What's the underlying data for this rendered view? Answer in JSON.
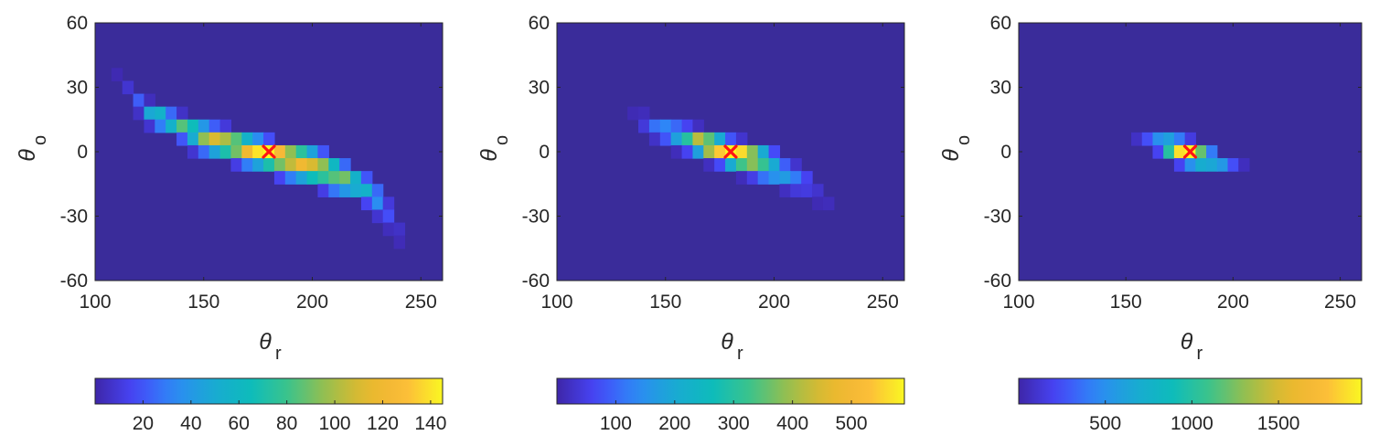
{
  "colors": {
    "background_cell": "#3a2c9a",
    "marker": "#ff1414",
    "axis": "#262626",
    "colormap": [
      "#3e26a8",
      "#4745f8",
      "#2e87f7",
      "#1aa9d3",
      "#0cbcbc",
      "#3bc38b",
      "#9abe4c",
      "#e6b92c",
      "#fcb93a",
      "#faf722"
    ]
  },
  "chart_data": [
    {
      "type": "heatmap",
      "xlabel": "θ",
      "xlabel_sub": "r",
      "ylabel": "θ",
      "ylabel_sub": "o",
      "xlim": [
        100,
        260
      ],
      "ylim": [
        -60,
        60
      ],
      "xticks": [
        100,
        150,
        200,
        250
      ],
      "yticks": [
        -60,
        -30,
        0,
        30,
        60
      ],
      "xtick_labels": [
        "100",
        "150",
        "200",
        "250"
      ],
      "ytick_labels": [
        "-60",
        "-30",
        "0",
        "30",
        "60"
      ],
      "bin_width_x": 5,
      "bin_width_y": 6,
      "colorbar": {
        "min": 0,
        "max": 145,
        "ticks": [
          20,
          40,
          60,
          80,
          100,
          120,
          140
        ],
        "tick_labels": [
          "20",
          "40",
          "60",
          "80",
          "100",
          "120",
          "140"
        ]
      },
      "marker": {
        "type": "x",
        "x": 180,
        "y": 0
      },
      "cells": [
        [
          110,
          36,
          2
        ],
        [
          115,
          30,
          8
        ],
        [
          120,
          24,
          22
        ],
        [
          125,
          24,
          4
        ],
        [
          120,
          18,
          6
        ],
        [
          125,
          18,
          48
        ],
        [
          130,
          18,
          55
        ],
        [
          135,
          18,
          25
        ],
        [
          140,
          18,
          6
        ],
        [
          125,
          12,
          8
        ],
        [
          130,
          12,
          30
        ],
        [
          135,
          12,
          55
        ],
        [
          140,
          12,
          85
        ],
        [
          145,
          12,
          65
        ],
        [
          150,
          12,
          40
        ],
        [
          155,
          12,
          22
        ],
        [
          160,
          12,
          10
        ],
        [
          140,
          6,
          20
        ],
        [
          145,
          6,
          50
        ],
        [
          150,
          6,
          95
        ],
        [
          155,
          6,
          110
        ],
        [
          160,
          6,
          100
        ],
        [
          165,
          6,
          85
        ],
        [
          170,
          6,
          55
        ],
        [
          175,
          6,
          35
        ],
        [
          180,
          6,
          18
        ],
        [
          145,
          0,
          8
        ],
        [
          150,
          0,
          25
        ],
        [
          155,
          0,
          45
        ],
        [
          160,
          0,
          70
        ],
        [
          165,
          0,
          90
        ],
        [
          170,
          0,
          120
        ],
        [
          175,
          0,
          140
        ],
        [
          180,
          0,
          145
        ],
        [
          185,
          0,
          125
        ],
        [
          190,
          0,
          95
        ],
        [
          195,
          0,
          75
        ],
        [
          200,
          0,
          45
        ],
        [
          205,
          0,
          20
        ],
        [
          165,
          -6,
          12
        ],
        [
          170,
          -6,
          30
        ],
        [
          175,
          -6,
          45
        ],
        [
          180,
          -6,
          70
        ],
        [
          185,
          -6,
          90
        ],
        [
          190,
          -6,
          105
        ],
        [
          195,
          -6,
          120
        ],
        [
          200,
          -6,
          110
        ],
        [
          205,
          -6,
          95
        ],
        [
          210,
          -6,
          60
        ],
        [
          215,
          -6,
          25
        ],
        [
          185,
          -12,
          15
        ],
        [
          190,
          -12,
          30
        ],
        [
          195,
          -12,
          45
        ],
        [
          200,
          -12,
          65
        ],
        [
          205,
          -12,
          75
        ],
        [
          210,
          -12,
          85
        ],
        [
          215,
          -12,
          90
        ],
        [
          220,
          -12,
          55
        ],
        [
          225,
          -12,
          20
        ],
        [
          205,
          -18,
          12
        ],
        [
          210,
          -18,
          28
        ],
        [
          215,
          -18,
          40
        ],
        [
          220,
          -18,
          50
        ],
        [
          225,
          -18,
          55
        ],
        [
          230,
          -18,
          25
        ],
        [
          225,
          -24,
          15
        ],
        [
          230,
          -24,
          35
        ],
        [
          235,
          -24,
          10
        ],
        [
          230,
          -30,
          8
        ],
        [
          235,
          -30,
          18
        ],
        [
          235,
          -36,
          4
        ],
        [
          240,
          -36,
          6
        ],
        [
          240,
          -42,
          3
        ]
      ]
    },
    {
      "type": "heatmap",
      "xlabel": "θ",
      "xlabel_sub": "r",
      "ylabel": "θ",
      "ylabel_sub": "o",
      "xlim": [
        100,
        260
      ],
      "ylim": [
        -60,
        60
      ],
      "xticks": [
        100,
        150,
        200,
        250
      ],
      "yticks": [
        -60,
        -30,
        0,
        30,
        60
      ],
      "xtick_labels": [
        "100",
        "150",
        "200",
        "250"
      ],
      "ytick_labels": [
        "-60",
        "-30",
        "0",
        "30",
        "60"
      ],
      "bin_width_x": 5,
      "bin_width_y": 6,
      "colorbar": {
        "min": 0,
        "max": 590,
        "ticks": [
          100,
          200,
          300,
          400,
          500
        ],
        "tick_labels": [
          "100",
          "200",
          "300",
          "400",
          "500"
        ]
      },
      "marker": {
        "type": "x",
        "x": 180,
        "y": 0
      },
      "cells": [
        [
          135,
          18,
          10
        ],
        [
          140,
          18,
          15
        ],
        [
          140,
          12,
          40
        ],
        [
          145,
          12,
          110
        ],
        [
          150,
          12,
          130
        ],
        [
          155,
          12,
          100
        ],
        [
          160,
          12,
          60
        ],
        [
          165,
          12,
          20
        ],
        [
          145,
          6,
          25
        ],
        [
          150,
          6,
          80
        ],
        [
          155,
          6,
          180
        ],
        [
          160,
          6,
          300
        ],
        [
          165,
          6,
          420
        ],
        [
          170,
          6,
          350
        ],
        [
          175,
          6,
          200
        ],
        [
          180,
          6,
          80
        ],
        [
          185,
          6,
          30
        ],
        [
          155,
          0,
          15
        ],
        [
          160,
          0,
          60
        ],
        [
          165,
          0,
          180
        ],
        [
          170,
          0,
          400
        ],
        [
          175,
          0,
          540
        ],
        [
          180,
          0,
          590
        ],
        [
          185,
          0,
          560
        ],
        [
          190,
          0,
          380
        ],
        [
          195,
          0,
          200
        ],
        [
          200,
          0,
          70
        ],
        [
          170,
          -6,
          20
        ],
        [
          175,
          -6,
          70
        ],
        [
          180,
          -6,
          200
        ],
        [
          185,
          -6,
          330
        ],
        [
          190,
          -6,
          380
        ],
        [
          195,
          -6,
          320
        ],
        [
          200,
          -6,
          200
        ],
        [
          205,
          -6,
          90
        ],
        [
          210,
          -6,
          30
        ],
        [
          185,
          -12,
          15
        ],
        [
          190,
          -12,
          50
        ],
        [
          195,
          -12,
          110
        ],
        [
          200,
          -12,
          150
        ],
        [
          205,
          -12,
          170
        ],
        [
          210,
          -12,
          120
        ],
        [
          215,
          -12,
          60
        ],
        [
          205,
          -18,
          20
        ],
        [
          210,
          -18,
          40
        ],
        [
          215,
          -18,
          45
        ],
        [
          220,
          -18,
          30
        ],
        [
          220,
          -24,
          10
        ],
        [
          225,
          -24,
          15
        ]
      ]
    },
    {
      "type": "heatmap",
      "xlabel": "θ",
      "xlabel_sub": "r",
      "ylabel": "θ",
      "ylabel_sub": "o",
      "xlim": [
        100,
        260
      ],
      "ylim": [
        -60,
        60
      ],
      "xticks": [
        100,
        150,
        200,
        250
      ],
      "yticks": [
        -60,
        -30,
        0,
        30,
        60
      ],
      "xtick_labels": [
        "100",
        "150",
        "200",
        "250"
      ],
      "ytick_labels": [
        "-60",
        "-30",
        "0",
        "30",
        "60"
      ],
      "bin_width_x": 5,
      "bin_width_y": 6,
      "colorbar": {
        "min": 0,
        "max": 1980,
        "ticks": [
          500,
          1000,
          1500
        ],
        "tick_labels": [
          "500",
          "1000",
          "1500"
        ]
      },
      "marker": {
        "type": "x",
        "x": 180,
        "y": 0
      },
      "cells": [
        [
          155,
          6,
          80
        ],
        [
          160,
          6,
          250
        ],
        [
          165,
          6,
          500
        ],
        [
          170,
          6,
          600
        ],
        [
          175,
          6,
          400
        ],
        [
          180,
          6,
          150
        ],
        [
          165,
          0,
          200
        ],
        [
          170,
          0,
          1000
        ],
        [
          175,
          0,
          1900
        ],
        [
          180,
          0,
          1980
        ],
        [
          185,
          0,
          1200
        ],
        [
          190,
          0,
          400
        ],
        [
          175,
          -6,
          200
        ],
        [
          180,
          -6,
          500
        ],
        [
          185,
          -6,
          700
        ],
        [
          190,
          -6,
          650
        ],
        [
          195,
          -6,
          550
        ],
        [
          200,
          -6,
          250
        ],
        [
          205,
          -6,
          60
        ]
      ]
    }
  ]
}
